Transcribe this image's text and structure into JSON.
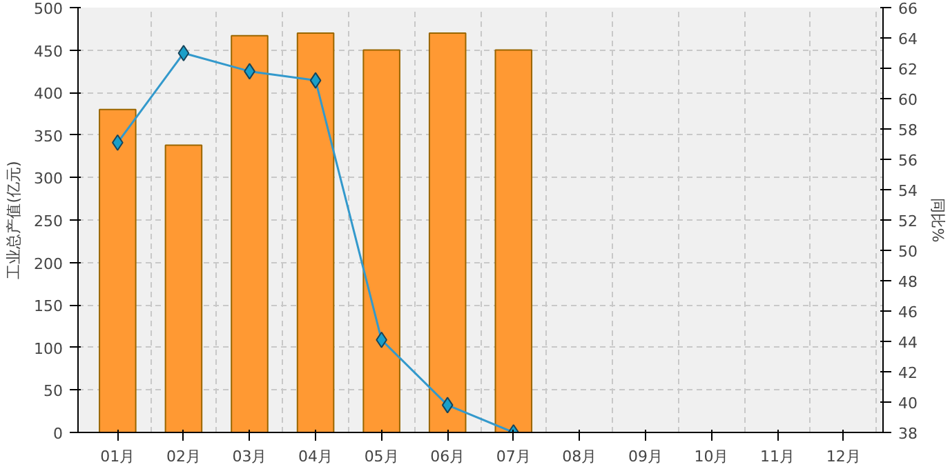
{
  "chart_data": {
    "type": "bar",
    "categories": [
      "01月",
      "02月",
      "03月",
      "04月",
      "05月",
      "06月",
      "07月",
      "08月",
      "09月",
      "10月",
      "11月",
      "12月"
    ],
    "ylabel": "工业总产值(亿元)",
    "y2label": "同比%",
    "ylim": [
      0,
      500
    ],
    "yticks": [
      0,
      50,
      100,
      150,
      200,
      250,
      300,
      350,
      400,
      450,
      500
    ],
    "y2lim": [
      38,
      66
    ],
    "y2ticks": [
      38,
      40,
      42,
      44,
      46,
      48,
      50,
      52,
      54,
      56,
      58,
      60,
      62,
      64,
      66
    ],
    "grid": true,
    "series": [
      {
        "color": "#ff9933",
        "values": [
          380,
          338,
          467,
          470,
          450,
          470,
          450,
          null,
          null,
          null,
          null,
          null
        ]
      },
      {
        "type": "line",
        "axis": "y2",
        "color": "#3399cc",
        "marker": "diamond",
        "values": [
          57.1,
          63.0,
          61.8,
          61.2,
          44.1,
          39.8,
          38.0,
          null,
          null,
          null,
          null,
          null
        ]
      }
    ]
  }
}
